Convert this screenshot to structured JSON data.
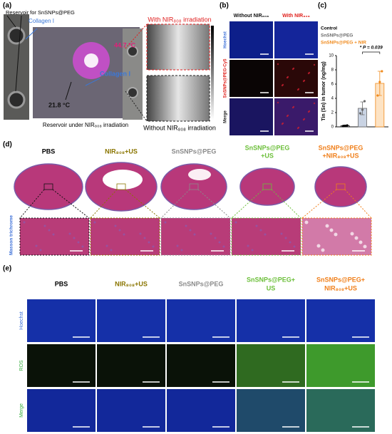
{
  "panel_a": {
    "label": "(a)",
    "reservoir": "Reservoir for SnSNPs@PEG",
    "collagen_top": "Collagen I",
    "temp_hot": "44.7 °C",
    "collagen_mid": "Collagen I",
    "temp_cold": "21.8 °C",
    "caption": "Reservoir under NIR₈₀₈ irradiation",
    "with": "With NIR₈₀₈ irradiation",
    "without": "Without NIR₈₀₈ irradiation"
  },
  "panel_b": {
    "label": "(b)",
    "columns": [
      "Without NIR₈₀₈",
      "With NIR₈₀₈"
    ],
    "rows": [
      {
        "text": "Hoechst",
        "color": "#3b6fd8"
      },
      {
        "text": "SnSNPs@PEG-Cy5",
        "color": "#e0201b"
      },
      {
        "text": "Merge",
        "color": "#222222"
      }
    ]
  },
  "chart_data": {
    "type": "bar",
    "label": "(c)",
    "ylabel": "Tin (Sn) in tumor (ng/mg)",
    "categories": [
      "Control",
      "SnSNPs@PEG",
      "SnSNPs@PEG + NIR"
    ],
    "colors": [
      "#000000",
      "#6a6a6a",
      "#f08a1c"
    ],
    "fills": [
      "#ffffff",
      "#c9d3e3",
      "#fde3c4"
    ],
    "values": [
      0.15,
      2.6,
      6.1
    ],
    "errors": [
      0.1,
      0.9,
      1.7
    ],
    "points": [
      [
        0.1,
        0.15,
        0.2
      ],
      [
        1.9,
        2.4,
        3.6
      ],
      [
        4.4,
        6.3,
        7.8
      ]
    ],
    "ylim": [
      0,
      10
    ],
    "yticks": [
      0,
      2,
      4,
      6,
      8,
      10
    ],
    "annotation": "* P = 0.039",
    "legend": "top-left"
  },
  "panel_d": {
    "label": "(d)",
    "row_label": "Masson trichrome",
    "columns": [
      {
        "lines": [
          "PBS"
        ],
        "color": "#000000"
      },
      {
        "lines": [
          "NIR₈₀₈+US"
        ],
        "color": "#8a7500"
      },
      {
        "lines": [
          "SnSNPs@PEG"
        ],
        "color": "#8a8a8a"
      },
      {
        "lines": [
          "SnSNPs@PEG",
          "+US"
        ],
        "color": "#6cbf3a"
      },
      {
        "lines": [
          "SnSNPs@PEG",
          "+NIR₈₀₈+US"
        ],
        "color": "#f07f1a"
      }
    ]
  },
  "panel_e": {
    "label": "(e)",
    "columns": [
      {
        "lines": [
          "PBS"
        ],
        "color": "#000000"
      },
      {
        "lines": [
          "NIR₈₀₈+US"
        ],
        "color": "#8a7500"
      },
      {
        "lines": [
          "SnSNPs@PEG"
        ],
        "color": "#8a8a8a"
      },
      {
        "lines": [
          "SnSNPs@PEG+",
          "US"
        ],
        "color": "#6cbf3a"
      },
      {
        "lines": [
          "SnSNPs@PEG+",
          "NIR₈₀₈+US"
        ],
        "color": "#f07f1a"
      }
    ],
    "rows": [
      {
        "text": "Hoechst",
        "color": "#3b6fd8"
      },
      {
        "text": "ROS",
        "color": "#3cb043"
      },
      {
        "text": "Merge",
        "color": "#3cb043"
      }
    ]
  }
}
